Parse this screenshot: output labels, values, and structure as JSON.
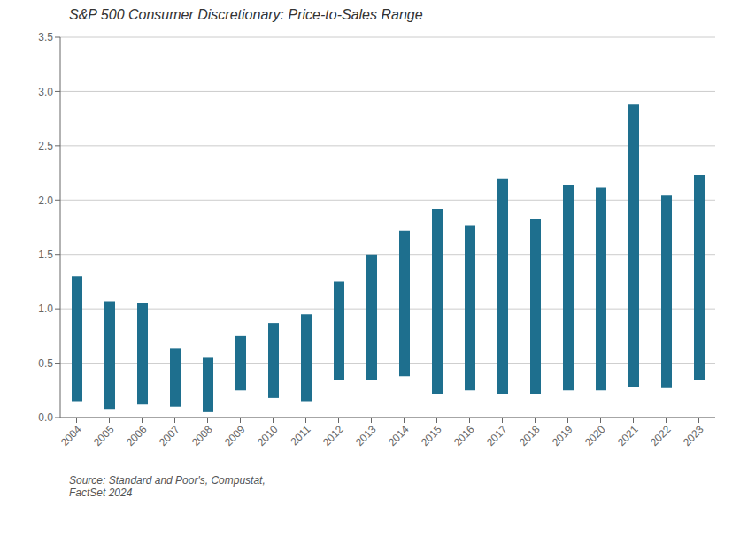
{
  "chart_data": {
    "type": "bar",
    "title": "S&P 500 Consumer Discretionary: Price-to-Sales Range",
    "categories": [
      "2004",
      "2005",
      "2006",
      "2007",
      "2008",
      "2009",
      "2010",
      "2011",
      "2012",
      "2013",
      "2014",
      "2015",
      "2016",
      "2017",
      "2018",
      "2019",
      "2020",
      "2021",
      "2022",
      "2023"
    ],
    "high_values": [
      1.3,
      1.07,
      1.05,
      0.64,
      0.55,
      0.75,
      0.87,
      0.95,
      1.25,
      1.5,
      1.72,
      1.92,
      1.77,
      2.2,
      1.83,
      2.14,
      2.12,
      2.88,
      2.05,
      2.23
    ],
    "low_values": [
      0.15,
      0.08,
      0.12,
      0.1,
      0.05,
      0.25,
      0.18,
      0.15,
      0.35,
      0.35,
      0.38,
      0.22,
      0.25,
      0.22,
      0.22,
      0.25,
      0.25,
      0.28,
      0.27,
      0.35
    ],
    "color": "#1e6f8e",
    "ylim": [
      0.0,
      3.5
    ],
    "yticks": [
      {
        "value": 0.0,
        "label": "0.0"
      },
      0.5,
      {
        "value": 1.0,
        "label": "1.0"
      },
      1.5,
      {
        "value": 2.0,
        "label": "2.0"
      },
      2.5,
      {
        "value": 3.0,
        "label": "3.0"
      },
      3.5
    ],
    "grid": true,
    "footnote": "Source: Standard and Poor's, Compustat,\nFactSet 2024"
  }
}
